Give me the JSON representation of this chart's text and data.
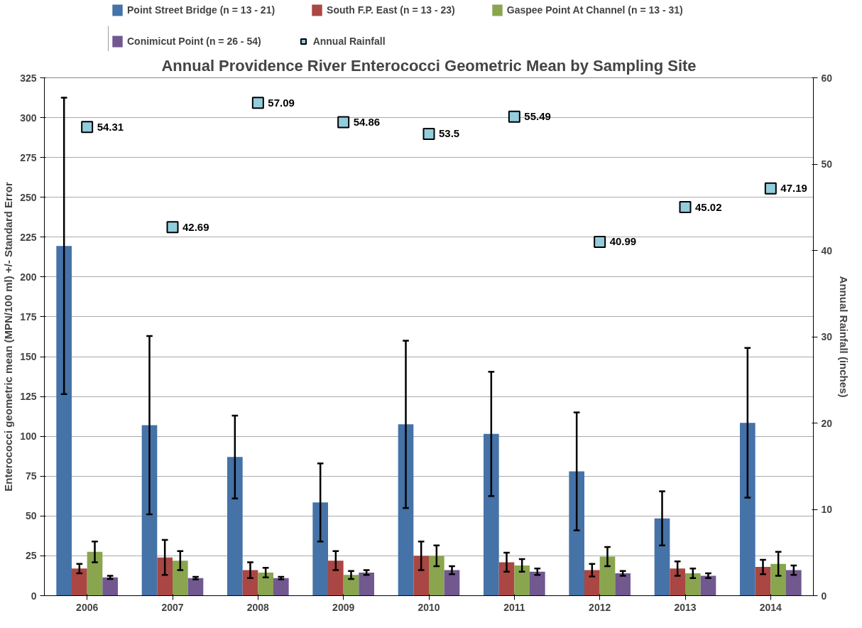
{
  "chart_data": {
    "type": "bar",
    "title": "Annual Providence River Enterococci Geometric Mean by Sampling Site",
    "categories": [
      "2006",
      "2007",
      "2008",
      "2009",
      "2010",
      "2011",
      "2012",
      "2013",
      "2014"
    ],
    "ylabel": "Enterococci geometric mean (MPN/100 ml) +/- Standard Error",
    "y2label": "Annual Rainfall (inches)",
    "ylim": [
      0,
      325
    ],
    "yticks": [
      0,
      25,
      50,
      75,
      100,
      125,
      150,
      175,
      200,
      225,
      250,
      275,
      300,
      325
    ],
    "y2lim": [
      0,
      60
    ],
    "y2ticks": [
      0,
      10,
      20,
      30,
      40,
      50,
      60
    ],
    "grid": "y",
    "legend": "top",
    "series": [
      {
        "name": "Point Street Bridge (n = 13 - 21)",
        "color": "#4572a7",
        "values": [
          219.5,
          107,
          87,
          58.5,
          107.5,
          101.5,
          78,
          48.5,
          108.5
        ],
        "errors": [
          93,
          56,
          26,
          24.5,
          52.5,
          39,
          37,
          17,
          47
        ]
      },
      {
        "name": "South F.P. East (n = 13 - 23)",
        "color": "#aa4643",
        "values": [
          17,
          24,
          16,
          22,
          25,
          21,
          16,
          17,
          18
        ],
        "errors": [
          3,
          11,
          5,
          6,
          9,
          6,
          4,
          4.5,
          4.5
        ]
      },
      {
        "name": "Gaspee Point At Channel (n = 13 - 31)",
        "color": "#89a54e",
        "values": [
          27.5,
          22,
          14.5,
          13,
          25,
          19,
          24.5,
          14,
          20
        ],
        "errors": [
          6.5,
          6,
          3,
          2.5,
          6.5,
          4,
          6,
          3,
          7.5
        ]
      },
      {
        "name": "Conimicut Point (n = 26 - 54)",
        "color": "#71588f",
        "values": [
          11.5,
          11,
          11,
          14.5,
          16,
          15,
          14,
          12.5,
          16
        ],
        "errors": [
          1,
          0.8,
          0.8,
          1.5,
          2.5,
          2,
          1.5,
          1.5,
          3
        ]
      },
      {
        "name": "Annual Rainfall",
        "type": "scatter",
        "axis": "y2",
        "marker": "square",
        "color": "#93cddd",
        "data_labels": true,
        "values": [
          54.31,
          42.69,
          57.09,
          54.86,
          53.5,
          55.49,
          40.99,
          45.02,
          47.19
        ]
      }
    ]
  }
}
